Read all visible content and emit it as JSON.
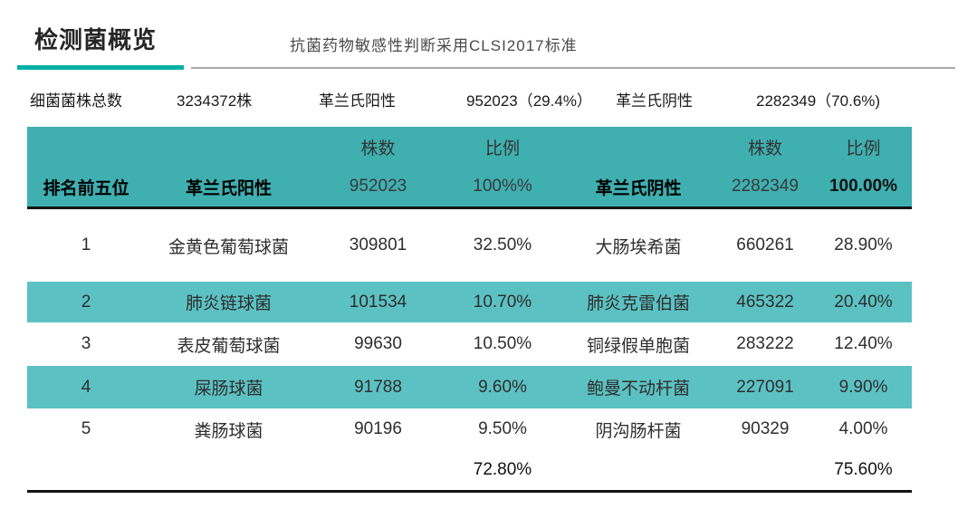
{
  "header": {
    "title": "检测菌概览",
    "subtitle": "抗菌药物敏感性判断采用CLSI2017标准",
    "accent_color": "#00b0a5"
  },
  "summary": {
    "total_label": "细菌菌株总数",
    "total_value": "3234372株",
    "gram_positive_label": "革兰氏阳性",
    "gram_positive_value": "952023（29.4%）",
    "gram_negative_label": "革兰氏阴性",
    "gram_negative_value": "2282349（70.6%)"
  },
  "table": {
    "header": {
      "rank_label": "排名前五位",
      "count_label_gp": "株数",
      "ratio_label_gp": "比例",
      "count_label_gn": "株数",
      "ratio_label_gn": "比例",
      "gp_name": "革兰氏阳性",
      "gp_count": "952023",
      "gp_ratio": "100%%",
      "gn_name": "革兰氏阴性",
      "gn_count": "2282349",
      "gn_ratio": "100.00%"
    },
    "rows": [
      {
        "rank": "1",
        "gp_name": "金黄色葡萄球菌",
        "gp_count": "309801",
        "gp_ratio": "32.50%",
        "gn_name": "大肠埃希菌",
        "gn_count": "660261",
        "gn_ratio": "28.90%"
      },
      {
        "rank": "2",
        "gp_name": "肺炎链球菌",
        "gp_count": "101534",
        "gp_ratio": "10.70%",
        "gn_name": "肺炎克雷伯菌",
        "gn_count": "465322",
        "gn_ratio": "20.40%"
      },
      {
        "rank": "3",
        "gp_name": "表皮葡萄球菌",
        "gp_count": "99630",
        "gp_ratio": "10.50%",
        "gn_name": "铜绿假单胞菌",
        "gn_count": "283222",
        "gn_ratio": "12.40%"
      },
      {
        "rank": "4",
        "gp_name": "屎肠球菌",
        "gp_count": "91788",
        "gp_ratio": "9.60%",
        "gn_name": "鲍曼不动杆菌",
        "gn_count": "227091",
        "gn_ratio": "9.90%"
      },
      {
        "rank": "5",
        "gp_name": "粪肠球菌",
        "gp_count": "90196",
        "gp_ratio": "9.50%",
        "gn_name": "阴沟肠杆菌",
        "gn_count": "90329",
        "gn_ratio": "4.00%"
      }
    ],
    "footer": {
      "gp_ratio_sum": "72.80%",
      "gn_ratio_sum": "75.60%"
    }
  },
  "colors": {
    "header_band": "#3fafb0",
    "row_band": "#5cc1c2",
    "title_accent": "#00b0a5",
    "rule_gray": "#ababab",
    "line_black": "#141414"
  },
  "chart_data": {
    "type": "table",
    "title": "检测菌概览",
    "subtitle": "抗菌药物敏感性判断采用CLSI2017标准",
    "summary": {
      "total_strains": 3234372,
      "gram_positive": {
        "count": 952023,
        "percent": 29.4
      },
      "gram_negative": {
        "count": 2282349,
        "percent": 70.6
      }
    },
    "columns": [
      "排名前五位",
      "革兰氏阳性",
      "株数",
      "比例",
      "革兰氏阴性",
      "株数",
      "比例"
    ],
    "gram_positive_top5": [
      {
        "rank": 1,
        "name": "金黄色葡萄球菌",
        "count": 309801,
        "ratio_pct": 32.5
      },
      {
        "rank": 2,
        "name": "肺炎链球菌",
        "count": 101534,
        "ratio_pct": 10.7
      },
      {
        "rank": 3,
        "name": "表皮葡萄球菌",
        "count": 99630,
        "ratio_pct": 10.5
      },
      {
        "rank": 4,
        "name": "屎肠球菌",
        "count": 91788,
        "ratio_pct": 9.6
      },
      {
        "rank": 5,
        "name": "粪肠球菌",
        "count": 90196,
        "ratio_pct": 9.5
      }
    ],
    "gram_negative_top5": [
      {
        "rank": 1,
        "name": "大肠埃希菌",
        "count": 660261,
        "ratio_pct": 28.9
      },
      {
        "rank": 2,
        "name": "肺炎克雷伯菌",
        "count": 465322,
        "ratio_pct": 20.4
      },
      {
        "rank": 3,
        "name": "铜绿假单胞菌",
        "count": 283222,
        "ratio_pct": 12.4
      },
      {
        "rank": 4,
        "name": "鲍曼不动杆菌",
        "count": 227091,
        "ratio_pct": 9.9
      },
      {
        "rank": 5,
        "name": "阴沟肠杆菌",
        "count": 90329,
        "ratio_pct": 4.0
      }
    ],
    "gram_positive_top5_ratio_sum_pct": 72.8,
    "gram_negative_top5_ratio_sum_pct": 75.6
  }
}
